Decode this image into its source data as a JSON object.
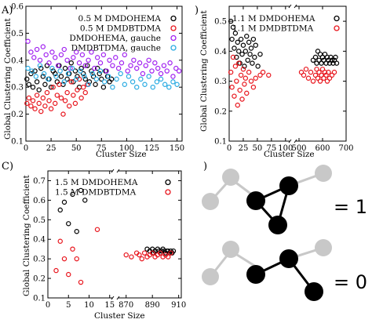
{
  "chart_data": [
    {
      "panel": "A)",
      "type": "scatter",
      "ylabel": "Global Clustering Coefficient",
      "xlabel": "",
      "xlim": [
        0,
        155
      ],
      "ylim": [
        0.1,
        0.6
      ],
      "xticks": [
        "0",
        "25",
        "50",
        "75",
        "100",
        "125",
        "150"
      ],
      "yticks": [
        "0.1",
        "0.2",
        "0.3",
        "0.4",
        "0.5",
        "0.6"
      ],
      "legend_location": "top-right",
      "series": [
        {
          "name": "0.5 M DMDOHEMA",
          "color": "#000000",
          "x": [
            1,
            3,
            5,
            7,
            9,
            11,
            13,
            15,
            17,
            19,
            21,
            23,
            25,
            27,
            29,
            31,
            33,
            35,
            37,
            39,
            41,
            43,
            45,
            47,
            49,
            51,
            53,
            55,
            57,
            59,
            61,
            63,
            65,
            67,
            69,
            71,
            73,
            75,
            77,
            79,
            81,
            83,
            85
          ],
          "y": [
            0.33,
            0.31,
            0.35,
            0.3,
            0.36,
            0.32,
            0.29,
            0.37,
            0.34,
            0.31,
            0.38,
            0.33,
            0.3,
            0.36,
            0.35,
            0.32,
            0.38,
            0.34,
            0.31,
            0.37,
            0.33,
            0.35,
            0.39,
            0.32,
            0.36,
            0.34,
            0.3,
            0.37,
            0.35,
            0.33,
            0.38,
            0.32,
            0.36,
            0.34,
            0.31,
            0.37,
            0.35,
            0.33,
            0.3,
            0.36,
            0.34,
            0.32,
            0.33
          ]
        },
        {
          "name": "0.5 M DMDBTDMA",
          "color": "#e8141c",
          "x": [
            1,
            3,
            5,
            7,
            9,
            11,
            13,
            15,
            17,
            19,
            21,
            23,
            25,
            27,
            29,
            31,
            33,
            35,
            37,
            39,
            41,
            43,
            45,
            47,
            49,
            51,
            53,
            55,
            57,
            59,
            61
          ],
          "y": [
            0.24,
            0.26,
            0.23,
            0.25,
            0.22,
            0.27,
            0.24,
            0.21,
            0.26,
            0.23,
            0.28,
            0.25,
            0.22,
            0.3,
            0.24,
            0.27,
            0.31,
            0.26,
            0.2,
            0.25,
            0.28,
            0.23,
            0.32,
            0.27,
            0.24,
            0.29,
            0.33,
            0.26,
            0.3,
            0.28,
            0.31
          ]
        },
        {
          "name": "DMDOHEMA, gauche",
          "color": "#a020f0",
          "x": [
            2,
            5,
            8,
            11,
            14,
            17,
            20,
            23,
            26,
            29,
            32,
            35,
            38,
            41,
            44,
            47,
            50,
            53,
            56,
            59,
            62,
            65,
            68,
            71,
            74,
            77,
            80,
            83,
            86,
            89,
            92,
            95,
            98,
            101,
            104,
            107,
            110,
            113,
            116,
            119,
            122,
            125,
            128,
            131,
            134,
            137,
            140,
            143,
            146,
            149,
            152
          ],
          "y": [
            0.47,
            0.43,
            0.41,
            0.44,
            0.4,
            0.45,
            0.42,
            0.39,
            0.43,
            0.41,
            0.38,
            0.42,
            0.44,
            0.4,
            0.37,
            0.41,
            0.43,
            0.39,
            0.42,
            0.38,
            0.4,
            0.43,
            0.37,
            0.41,
            0.39,
            0.42,
            0.36,
            0.4,
            0.38,
            0.41,
            0.37,
            0.39,
            0.42,
            0.36,
            0.38,
            0.4,
            0.37,
            0.39,
            0.35,
            0.38,
            0.4,
            0.36,
            0.39,
            0.37,
            0.35,
            0.38,
            0.36,
            0.39,
            0.34,
            0.37,
            0.36
          ]
        },
        {
          "name": "DMDBTDMA, gauche",
          "color": "#29abe2",
          "x": [
            2,
            6,
            10,
            14,
            18,
            22,
            26,
            30,
            34,
            38,
            42,
            46,
            50,
            54,
            58,
            62,
            66,
            70,
            74,
            78,
            82,
            86,
            90,
            94,
            98,
            102,
            106,
            110,
            114,
            118,
            122,
            126,
            130,
            134,
            138,
            142,
            146,
            150
          ],
          "y": [
            0.37,
            0.36,
            0.34,
            0.38,
            0.35,
            0.33,
            0.37,
            0.34,
            0.36,
            0.32,
            0.35,
            0.37,
            0.33,
            0.36,
            0.34,
            0.31,
            0.35,
            0.33,
            0.36,
            0.32,
            0.34,
            0.3,
            0.33,
            0.35,
            0.31,
            0.34,
            0.32,
            0.3,
            0.33,
            0.31,
            0.34,
            0.3,
            0.32,
            0.33,
            0.31,
            0.3,
            0.32,
            0.31
          ]
        }
      ]
    },
    {
      "panel": ")",
      "type": "scatter",
      "ylabel": "Global Clustering Coefficient",
      "xlabel": "Cluster Size",
      "broken_x_axis": true,
      "xticks": [
        "0",
        "25",
        "50",
        "75",
        "100",
        "500",
        "600",
        "700"
      ],
      "yticks": [
        "0.1",
        "0.2",
        "0.3",
        "0.4",
        "0.5"
      ],
      "ylim": [
        0.1,
        0.55
      ],
      "legend_location": "top-left",
      "series": [
        {
          "name": "1.1 M DMDOHEMA",
          "color": "#000000",
          "x": [
            3,
            5,
            7,
            9,
            11,
            13,
            15,
            17,
            19,
            21,
            23,
            25,
            27,
            29,
            31,
            33,
            35,
            37,
            39,
            41,
            43,
            45,
            47,
            51,
            55,
            560,
            570,
            575,
            580,
            585,
            590,
            595,
            600,
            605,
            610,
            615,
            620,
            625,
            630,
            635,
            640,
            645,
            650,
            655,
            660
          ],
          "y": [
            0.5,
            0.44,
            0.48,
            0.41,
            0.46,
            0.38,
            0.43,
            0.4,
            0.36,
            0.44,
            0.39,
            0.42,
            0.35,
            0.4,
            0.45,
            0.37,
            0.43,
            0.39,
            0.41,
            0.36,
            0.44,
            0.38,
            0.42,
            0.35,
            0.39,
            0.37,
            0.38,
            0.36,
            0.4,
            0.37,
            0.39,
            0.36,
            0.38,
            0.37,
            0.39,
            0.36,
            0.38,
            0.37,
            0.36,
            0.38,
            0.37,
            0.36,
            0.37,
            0.38,
            0.36
          ]
        },
        {
          "name": "1.1 M DMDBTDMA",
          "color": "#e8141c",
          "x": [
            3,
            5,
            7,
            9,
            11,
            13,
            15,
            17,
            19,
            21,
            23,
            25,
            27,
            29,
            31,
            35,
            39,
            43,
            47,
            55,
            60,
            70,
            510,
            520,
            530,
            540,
            550,
            560,
            570,
            575,
            580,
            585,
            590,
            595,
            600,
            605,
            610,
            615,
            620,
            625,
            630,
            640,
            650
          ],
          "y": [
            0.33,
            0.28,
            0.38,
            0.25,
            0.35,
            0.3,
            0.22,
            0.36,
            0.27,
            0.32,
            0.24,
            0.34,
            0.29,
            0.31,
            0.26,
            0.33,
            0.3,
            0.28,
            0.31,
            0.32,
            0.33,
            0.32,
            0.33,
            0.32,
            0.34,
            0.31,
            0.33,
            0.3,
            0.32,
            0.34,
            0.31,
            0.33,
            0.3,
            0.32,
            0.34,
            0.31,
            0.33,
            0.32,
            0.3,
            0.33,
            0.31,
            0.32,
            0.33
          ]
        }
      ]
    },
    {
      "panel": "C)",
      "type": "scatter",
      "ylabel": "Global Clustering Coefficient",
      "xlabel": "Cluster Size",
      "broken_x_axis": true,
      "xticks": [
        "0",
        "5",
        "10",
        "15",
        "870",
        "890",
        "910"
      ],
      "yticks": [
        "0.1",
        "0.2",
        "0.3",
        "0.4",
        "0.5",
        "0.6",
        "0.7"
      ],
      "ylim": [
        0.1,
        0.75
      ],
      "legend_location": "top-left",
      "series": [
        {
          "name": "1.5 M DMDOHEMA",
          "color": "#000000",
          "x": [
            3,
            4,
            5,
            6,
            7,
            8,
            9,
            886,
            888,
            890,
            891,
            892,
            894,
            895,
            896,
            897,
            898,
            899,
            900,
            901,
            902,
            903,
            904,
            905,
            906
          ],
          "y": [
            0.55,
            0.59,
            0.48,
            0.63,
            0.44,
            0.65,
            0.6,
            0.35,
            0.34,
            0.35,
            0.33,
            0.34,
            0.35,
            0.34,
            0.33,
            0.34,
            0.35,
            0.34,
            0.33,
            0.34,
            0.34,
            0.33,
            0.34,
            0.33,
            0.34
          ]
        },
        {
          "name": "1.5 M DMDBTDMA",
          "color": "#e8141c",
          "x": [
            2,
            3,
            4,
            5,
            6,
            7,
            8,
            12,
            870,
            874,
            878,
            880,
            882,
            884,
            886,
            888,
            890,
            892,
            894,
            896,
            898,
            900,
            902,
            904
          ],
          "y": [
            0.24,
            0.39,
            0.3,
            0.22,
            0.35,
            0.3,
            0.18,
            0.45,
            0.32,
            0.31,
            0.33,
            0.32,
            0.3,
            0.33,
            0.31,
            0.32,
            0.33,
            0.31,
            0.32,
            0.33,
            0.31,
            0.32,
            0.31,
            0.33
          ]
        }
      ]
    }
  ],
  "panel_d": {
    "letter": ")",
    "top_value": "= 1",
    "bottom_value": "= 0"
  }
}
